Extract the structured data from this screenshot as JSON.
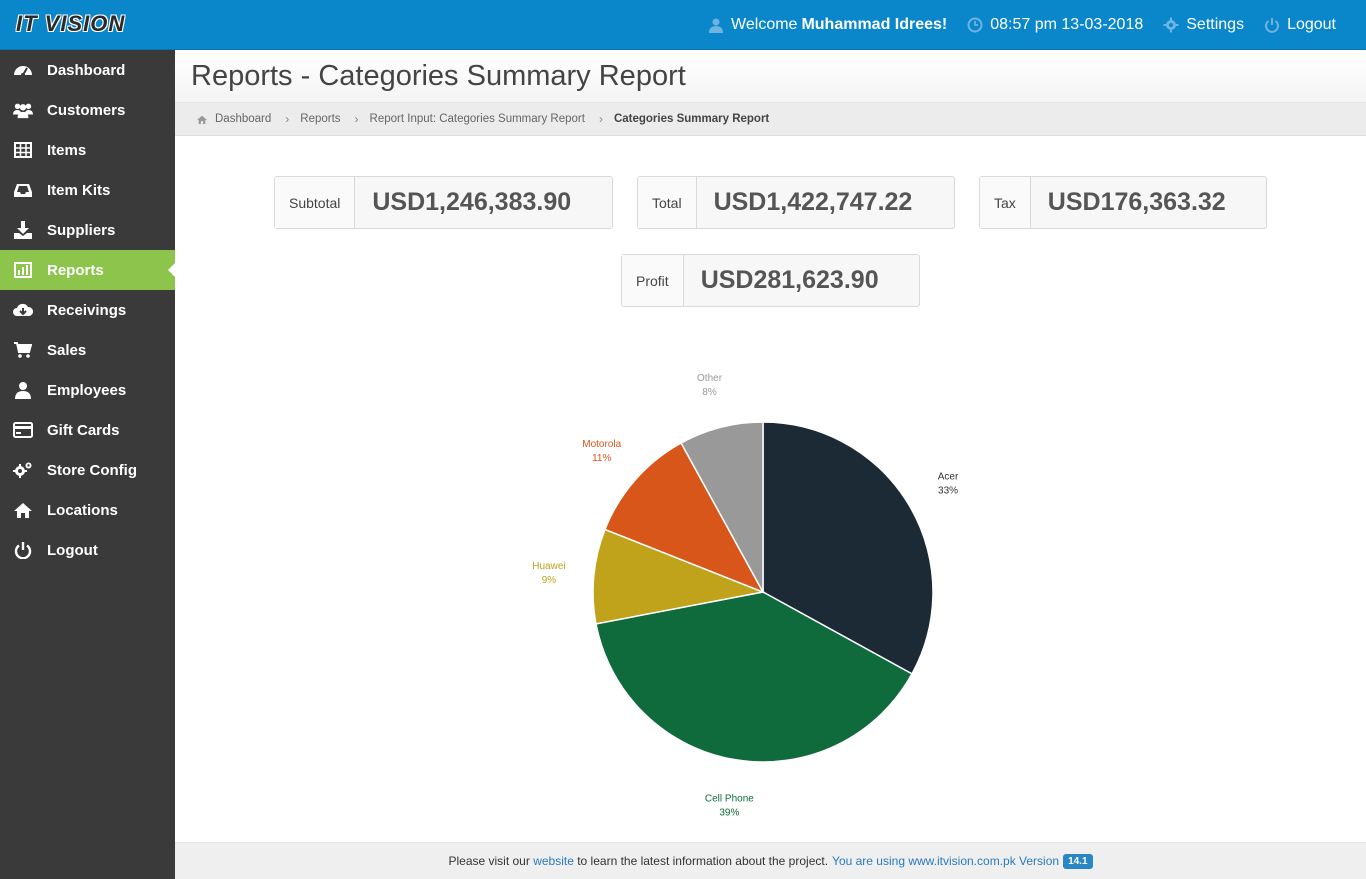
{
  "app": {
    "logo_text": "IT VISION"
  },
  "topnav": {
    "welcome_prefix": "Welcome",
    "user_name": "Muhammad Idrees!",
    "datetime": "08:57 pm 13-03-2018",
    "settings_label": "Settings",
    "logout_label": "Logout"
  },
  "sidebar": {
    "items": [
      {
        "label": "Dashboard",
        "icon": "dashboard-icon"
      },
      {
        "label": "Customers",
        "icon": "customers-icon"
      },
      {
        "label": "Items",
        "icon": "items-table-icon"
      },
      {
        "label": "Item Kits",
        "icon": "inbox-icon"
      },
      {
        "label": "Suppliers",
        "icon": "download-icon"
      },
      {
        "label": "Reports",
        "icon": "bar-chart-icon",
        "active": true
      },
      {
        "label": "Receivings",
        "icon": "cloud-download-icon"
      },
      {
        "label": "Sales",
        "icon": "cart-icon"
      },
      {
        "label": "Employees",
        "icon": "user-icon"
      },
      {
        "label": "Gift Cards",
        "icon": "credit-card-icon"
      },
      {
        "label": "Store Config",
        "icon": "gears-icon"
      },
      {
        "label": "Locations",
        "icon": "home-icon"
      },
      {
        "label": "Logout",
        "icon": "power-icon"
      }
    ]
  },
  "page": {
    "title": "Reports - Categories Summary Report",
    "breadcrumb": [
      "Dashboard",
      "Reports",
      "Report Input: Categories Summary Report",
      "Categories Summary Report"
    ]
  },
  "summary": {
    "subtotal": {
      "label": "Subtotal",
      "value": "USD1,246,383.90"
    },
    "total": {
      "label": "Total",
      "value": "USD1,422,747.22"
    },
    "tax": {
      "label": "Tax",
      "value": "USD176,363.32"
    },
    "profit": {
      "label": "Profit",
      "value": "USD281,623.90"
    }
  },
  "chart_data": {
    "type": "pie",
    "slices": [
      {
        "label": "Acer",
        "value": 33,
        "pct_label": "33%",
        "color": "#1c2a35",
        "label_color": "#333333"
      },
      {
        "label": "Cell Phone",
        "value": 39,
        "pct_label": "39%",
        "color": "#0f6b3c",
        "label_color": "#0f6b3c"
      },
      {
        "label": "Huawei",
        "value": 9,
        "pct_label": "9%",
        "color": "#c0a31b",
        "label_color": "#c0a31b"
      },
      {
        "label": "Motorola",
        "value": 11,
        "pct_label": "11%",
        "color": "#d9561b",
        "label_color": "#d9561b"
      },
      {
        "label": "Other",
        "value": 8,
        "pct_label": "8%",
        "color": "#999999",
        "label_color": "#999999"
      }
    ]
  },
  "footer": {
    "text1": "Please visit our",
    "link": "website",
    "text2": "to learn the latest information about the project.",
    "text3": "You are using www.itvision.com.pk Version",
    "version": "14.1"
  }
}
